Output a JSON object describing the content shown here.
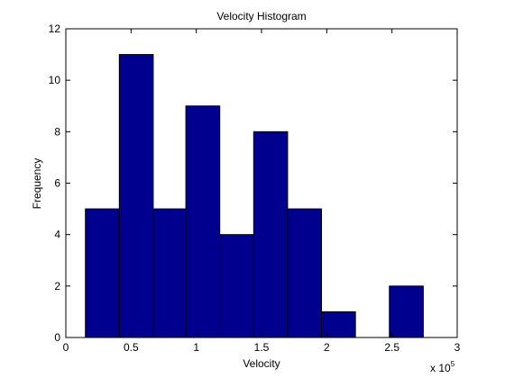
{
  "chart_data": {
    "type": "bar",
    "title": "Velocity Histogram",
    "xlabel": "Velocity",
    "ylabel": "Frequency",
    "x_multiplier_label": "x 10",
    "x_multiplier_exponent": "5",
    "xlim": [
      0,
      3
    ],
    "ylim": [
      0,
      12
    ],
    "x_ticks": [
      0,
      0.5,
      1,
      1.5,
      2,
      2.5,
      3
    ],
    "x_tick_labels": [
      "0",
      "0.5",
      "1",
      "1.5",
      "2",
      "2.5",
      "3"
    ],
    "y_ticks": [
      0,
      2,
      4,
      6,
      8,
      10,
      12
    ],
    "y_tick_labels": [
      "0",
      "2",
      "4",
      "6",
      "8",
      "10",
      "12"
    ],
    "bin_edges": [
      0.15,
      0.41,
      0.67,
      0.92,
      1.18,
      1.44,
      1.7,
      1.96,
      2.22,
      2.48,
      2.74
    ],
    "values": [
      5,
      11,
      5,
      9,
      4,
      8,
      5,
      1,
      0,
      2
    ],
    "bar_color": "#00008f",
    "edge_color": "#000000",
    "grid": false
  }
}
